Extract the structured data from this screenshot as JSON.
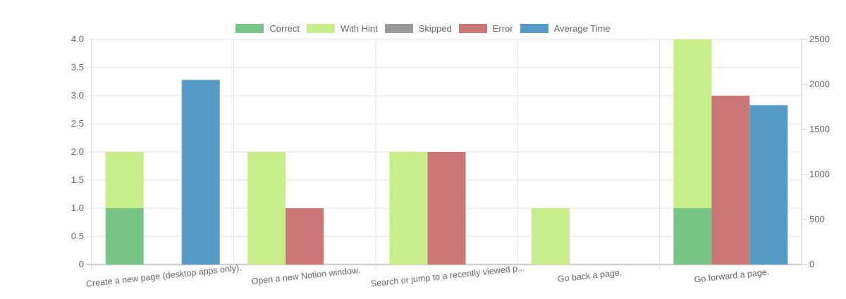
{
  "chart_data": {
    "type": "bar",
    "categories": [
      "Create a new page (desktop apps only).",
      "Open a new Notion window.",
      "Search or jump to a recently viewed p...",
      "Go back a page.",
      "Go forward a page."
    ],
    "series": [
      {
        "name": "Correct",
        "color": "#77c687",
        "stack": "counts",
        "axis": "left",
        "values": [
          1,
          0,
          0,
          0,
          1
        ]
      },
      {
        "name": "With Hint",
        "color": "#c8ed8b",
        "stack": "counts",
        "axis": "left",
        "values": [
          1,
          2,
          2,
          1,
          3
        ]
      },
      {
        "name": "Skipped",
        "color": "#999999",
        "stack": "counts",
        "axis": "left",
        "values": [
          0,
          0,
          0,
          0,
          0
        ]
      },
      {
        "name": "Error",
        "color": "#cb7777",
        "axis": "left",
        "values": [
          0,
          1,
          2,
          0,
          3
        ]
      },
      {
        "name": "Average Time",
        "color": "#569bc6",
        "axis": "right",
        "values": [
          2050,
          0,
          0,
          0,
          1770
        ]
      }
    ],
    "y_left": {
      "min": 0,
      "max": 4,
      "step": 0.5,
      "ticks": [
        "0",
        "0.5",
        "1.0",
        "1.5",
        "2.0",
        "2.5",
        "3.0",
        "3.5",
        "4.0"
      ]
    },
    "y_right": {
      "min": 0,
      "max": 2500,
      "step": 500,
      "ticks": [
        "0",
        "500",
        "1000",
        "1500",
        "2000",
        "2500"
      ]
    },
    "grid": true,
    "legend": "top-center"
  }
}
